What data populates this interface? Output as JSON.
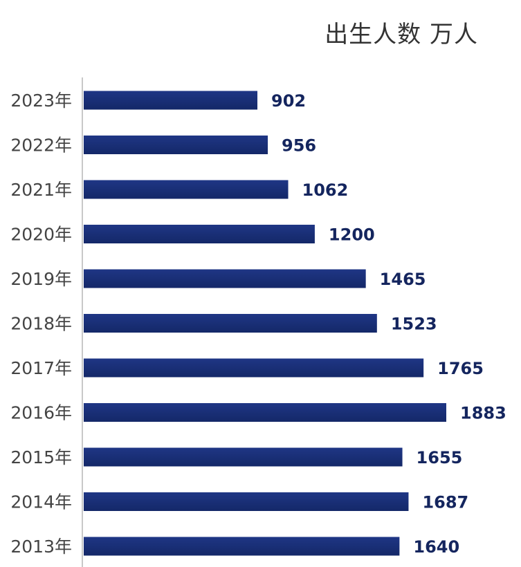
{
  "chart_data": {
    "type": "bar",
    "orientation": "horizontal",
    "title": "出生人数 万人",
    "categories": [
      "2023年",
      "2022年",
      "2021年",
      "2020年",
      "2019年",
      "2018年",
      "2017年",
      "2016年",
      "2015年",
      "2014年",
      "2013年"
    ],
    "values": [
      902,
      956,
      1062,
      1200,
      1465,
      1523,
      1765,
      1883,
      1655,
      1687,
      1640
    ],
    "value_labels": [
      "902",
      "956",
      "1062",
      "1200",
      "1465",
      "1523",
      "1765",
      "1883",
      "1655",
      "1687",
      "1640"
    ],
    "xlim": [
      0,
      1883
    ],
    "grid": false,
    "data_labels": true,
    "colors": {
      "bar": "#1f3685",
      "bar_dark": "#142868",
      "value_label": "#14255e",
      "axis": "#c8c8c8",
      "tick_label": "#444444",
      "title": "#333333"
    }
  }
}
